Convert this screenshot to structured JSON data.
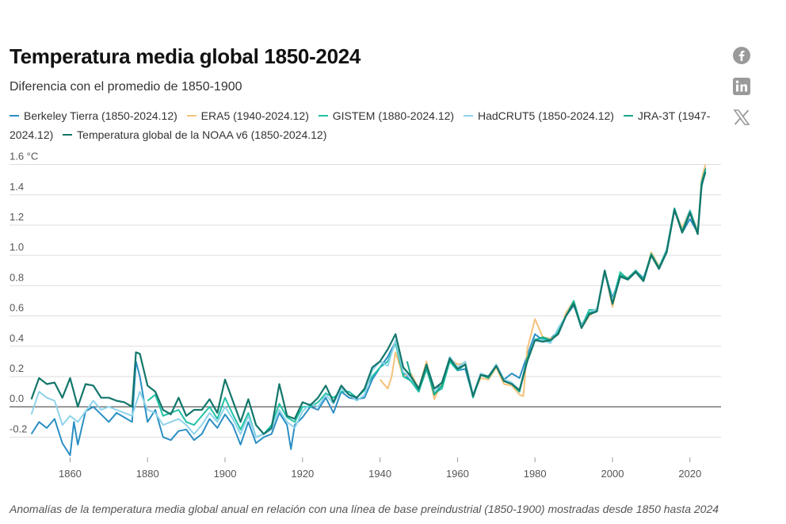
{
  "header": {
    "title": "Temperatura media global 1850-2024",
    "subtitle": "Diferencia con el promedio de 1850-1900"
  },
  "legend": [
    {
      "label": "Berkeley Tierra (1850-2024.12)",
      "color": "#2b8fc4"
    },
    {
      "label": "ERA5 (1940-2024.12)",
      "color": "#f5c27a"
    },
    {
      "label": "GISTEM (1880-2024.12)",
      "color": "#22c2a6"
    },
    {
      "label": "HadCRUT5 (1850-2024.12)",
      "color": "#8fd3ea"
    },
    {
      "label": "JRA-3T (1947-2024.12)",
      "color": "#17a88a"
    },
    {
      "label": "Temperatura global de la NOAA v6 (1850-2024.12)",
      "color": "#13766b"
    }
  ],
  "social": [
    {
      "name": "facebook-icon"
    },
    {
      "name": "linkedin-icon"
    },
    {
      "name": "x-icon"
    }
  ],
  "caption": "Anomalías de la temperatura media global anual en relación con una línea de base preindustrial (1850-1900) mostradas desde 1850 hasta 2024",
  "chart_data": {
    "type": "line",
    "title": "Temperatura media global 1850-2024",
    "subtitle": "Diferencia con el promedio de 1850-1900",
    "ylabel_unit": "°C",
    "xlim": [
      1846,
      2027
    ],
    "ylim": [
      -0.35,
      1.65
    ],
    "yticks": [
      -0.2,
      0.0,
      0.2,
      0.4,
      0.6,
      0.8,
      1.0,
      1.2,
      1.4,
      1.6
    ],
    "ytick_labels": [
      "-0.2",
      "0.0",
      "0.2",
      "0.4",
      "0.6",
      "0.8",
      "1.0",
      "1.2",
      "1.4",
      "1.6 °C"
    ],
    "xticks": [
      1860,
      1880,
      1900,
      1920,
      1940,
      1960,
      1980,
      2000,
      2020
    ],
    "xtick_labels": [
      "1860",
      "1880",
      "1900",
      "1920",
      "1940",
      "1960",
      "1980",
      "2000",
      "2020"
    ],
    "grid": "horizontal",
    "legend_position": "top",
    "series": [
      {
        "name": "Berkeley Tierra (1850-2024.12)",
        "color": "#2b8fc4",
        "x": [
          1850,
          1852,
          1854,
          1856,
          1858,
          1860,
          1861,
          1862,
          1864,
          1866,
          1868,
          1870,
          1872,
          1874,
          1876,
          1877,
          1878,
          1880,
          1882,
          1884,
          1886,
          1888,
          1890,
          1892,
          1894,
          1896,
          1898,
          1900,
          1902,
          1904,
          1906,
          1908,
          1910,
          1912,
          1914,
          1916,
          1917,
          1918,
          1920,
          1922,
          1924,
          1926,
          1928,
          1930,
          1932,
          1934,
          1936,
          1938,
          1940,
          1942,
          1944,
          1946,
          1948,
          1950,
          1952,
          1954,
          1956,
          1958,
          1960,
          1962,
          1964,
          1966,
          1968,
          1970,
          1972,
          1974,
          1976,
          1978,
          1980,
          1982,
          1984,
          1986,
          1988,
          1990,
          1992,
          1994,
          1996,
          1998,
          2000,
          2002,
          2004,
          2006,
          2008,
          2010,
          2012,
          2014,
          2016,
          2018,
          2020,
          2022,
          2023,
          2024
        ],
        "y": [
          -0.18,
          -0.1,
          -0.14,
          -0.08,
          -0.24,
          -0.32,
          -0.1,
          -0.25,
          -0.03,
          0.0,
          -0.05,
          -0.1,
          -0.04,
          -0.07,
          -0.1,
          0.3,
          0.2,
          -0.1,
          -0.02,
          -0.2,
          -0.22,
          -0.16,
          -0.15,
          -0.22,
          -0.18,
          -0.08,
          -0.14,
          -0.05,
          -0.12,
          -0.25,
          -0.1,
          -0.24,
          -0.2,
          -0.18,
          -0.04,
          -0.12,
          -0.28,
          -0.12,
          -0.07,
          0.0,
          -0.02,
          0.06,
          -0.04,
          0.1,
          0.06,
          0.05,
          0.06,
          0.18,
          0.26,
          0.33,
          0.43,
          0.22,
          0.17,
          0.1,
          0.25,
          0.09,
          0.16,
          0.3,
          0.24,
          0.25,
          0.07,
          0.22,
          0.2,
          0.28,
          0.18,
          0.22,
          0.19,
          0.34,
          0.48,
          0.44,
          0.45,
          0.5,
          0.6,
          0.67,
          0.54,
          0.62,
          0.64,
          0.89,
          0.72,
          0.86,
          0.84,
          0.9,
          0.85,
          1.0,
          0.92,
          1.04,
          1.31,
          1.15,
          1.24,
          1.15,
          1.45,
          1.58
        ]
      },
      {
        "name": "ERA5 (1940-2024.12)",
        "color": "#f5c27a",
        "x": [
          1940,
          1942,
          1943,
          1944,
          1946,
          1948,
          1950,
          1952,
          1954,
          1956,
          1958,
          1960,
          1962,
          1964,
          1966,
          1968,
          1970,
          1972,
          1974,
          1976,
          1977,
          1978,
          1980,
          1982,
          1984,
          1986,
          1988,
          1990,
          1992,
          1994,
          1996,
          1998,
          2000,
          2002,
          2004,
          2006,
          2008,
          2010,
          2012,
          2014,
          2016,
          2018,
          2020,
          2022,
          2023,
          2024
        ],
        "y": [
          0.18,
          0.12,
          0.2,
          0.36,
          0.2,
          0.22,
          0.12,
          0.3,
          0.05,
          0.16,
          0.32,
          0.28,
          0.29,
          0.08,
          0.19,
          0.18,
          0.26,
          0.15,
          0.14,
          0.08,
          0.07,
          0.38,
          0.58,
          0.46,
          0.45,
          0.48,
          0.62,
          0.7,
          0.52,
          0.6,
          0.64,
          0.9,
          0.66,
          0.88,
          0.85,
          0.89,
          0.83,
          1.02,
          0.93,
          1.02,
          1.3,
          1.18,
          1.3,
          1.16,
          1.5,
          1.6
        ]
      },
      {
        "name": "GISTEM (1880-2024.12)",
        "color": "#22c2a6",
        "x": [
          1880,
          1882,
          1884,
          1886,
          1888,
          1890,
          1892,
          1894,
          1896,
          1898,
          1900,
          1902,
          1904,
          1906,
          1908,
          1910,
          1912,
          1914,
          1916,
          1918,
          1920,
          1922,
          1924,
          1926,
          1928,
          1930,
          1932,
          1934,
          1936,
          1938,
          1940,
          1942,
          1944,
          1946,
          1948,
          1950,
          1952,
          1954,
          1956,
          1958,
          1960,
          1962,
          1964,
          1966,
          1968,
          1970,
          1972,
          1974,
          1976,
          1978,
          1980,
          1982,
          1984,
          1986,
          1988,
          1990,
          1992,
          1994,
          1996,
          1998,
          2000,
          2002,
          2004,
          2006,
          2008,
          2010,
          2012,
          2014,
          2016,
          2018,
          2020,
          2022,
          2023,
          2024
        ],
        "y": [
          0.04,
          0.08,
          -0.06,
          -0.04,
          -0.02,
          -0.1,
          -0.12,
          -0.06,
          0.0,
          -0.08,
          0.06,
          -0.05,
          -0.15,
          -0.04,
          -0.2,
          -0.18,
          -0.12,
          0.02,
          -0.07,
          -0.1,
          0.0,
          0.0,
          0.03,
          0.09,
          0.06,
          0.1,
          0.1,
          0.06,
          0.11,
          0.2,
          0.26,
          0.3,
          0.42,
          0.2,
          0.17,
          0.1,
          0.25,
          0.09,
          0.12,
          0.3,
          0.24,
          0.28,
          0.06,
          0.21,
          0.2,
          0.27,
          0.18,
          0.16,
          0.1,
          0.3,
          0.44,
          0.45,
          0.43,
          0.5,
          0.6,
          0.7,
          0.53,
          0.64,
          0.64,
          0.9,
          0.7,
          0.89,
          0.84,
          0.9,
          0.83,
          1.0,
          0.92,
          1.02,
          1.3,
          1.16,
          1.3,
          1.15,
          1.47,
          1.56
        ]
      },
      {
        "name": "HadCRUT5 (1850-2024.12)",
        "color": "#8fd3ea",
        "x": [
          1850,
          1852,
          1854,
          1856,
          1858,
          1860,
          1862,
          1864,
          1866,
          1868,
          1870,
          1872,
          1874,
          1876,
          1878,
          1880,
          1882,
          1884,
          1886,
          1888,
          1890,
          1892,
          1894,
          1896,
          1898,
          1900,
          1902,
          1904,
          1906,
          1908,
          1910,
          1912,
          1914,
          1916,
          1918,
          1920,
          1922,
          1924,
          1926,
          1928,
          1930,
          1932,
          1934,
          1936,
          1938,
          1940,
          1942,
          1944,
          1946,
          1948,
          1950,
          1952,
          1954,
          1956,
          1958,
          1960,
          1962,
          1964,
          1966,
          1968,
          1970,
          1972,
          1974,
          1976,
          1978,
          1980,
          1982,
          1984,
          1986,
          1988,
          1990,
          1992,
          1994,
          1996,
          1998,
          2000,
          2002,
          2004,
          2006,
          2008,
          2010,
          2012,
          2014,
          2016,
          2018,
          2020,
          2022,
          2023,
          2024
        ],
        "y": [
          -0.05,
          0.1,
          0.06,
          0.04,
          -0.12,
          -0.06,
          -0.1,
          -0.03,
          0.04,
          -0.02,
          0.0,
          -0.02,
          -0.04,
          -0.06,
          0.1,
          -0.02,
          -0.04,
          -0.12,
          -0.1,
          -0.08,
          -0.12,
          -0.18,
          -0.12,
          -0.04,
          -0.1,
          0.0,
          -0.08,
          -0.18,
          -0.06,
          -0.2,
          -0.18,
          -0.15,
          -0.02,
          -0.1,
          -0.14,
          -0.03,
          0.02,
          0.0,
          0.08,
          0.02,
          0.12,
          0.08,
          0.04,
          0.08,
          0.24,
          0.3,
          0.27,
          0.44,
          0.23,
          0.19,
          0.12,
          0.27,
          0.1,
          0.14,
          0.33,
          0.26,
          0.3,
          0.08,
          0.22,
          0.2,
          0.28,
          0.18,
          0.16,
          0.11,
          0.32,
          0.45,
          0.44,
          0.42,
          0.52,
          0.6,
          0.68,
          0.53,
          0.62,
          0.65,
          0.88,
          0.7,
          0.86,
          0.84,
          0.9,
          0.84,
          1.0,
          0.92,
          1.04,
          1.3,
          1.16,
          1.3,
          1.15,
          1.48,
          1.56
        ]
      },
      {
        "name": "JRA-3T (1947-2024.12)",
        "color": "#17a88a",
        "x": [
          1947,
          1948,
          1950,
          1952,
          1954,
          1956,
          1958,
          1960,
          1962,
          1964,
          1966,
          1968,
          1970,
          1972,
          1974,
          1976,
          1978,
          1980,
          1982,
          1984,
          1986,
          1988,
          1990,
          1992,
          1994,
          1996,
          1998,
          2000,
          2002,
          2004,
          2006,
          2008,
          2010,
          2012,
          2014,
          2016,
          2018,
          2020,
          2022,
          2023,
          2024
        ],
        "y": [
          0.3,
          0.2,
          0.11,
          0.26,
          0.08,
          0.14,
          0.31,
          0.25,
          0.28,
          0.07,
          0.21,
          0.19,
          0.27,
          0.17,
          0.15,
          0.1,
          0.32,
          0.44,
          0.46,
          0.44,
          0.49,
          0.6,
          0.69,
          0.52,
          0.62,
          0.63,
          0.9,
          0.68,
          0.87,
          0.85,
          0.9,
          0.84,
          1.01,
          0.92,
          1.03,
          1.31,
          1.16,
          1.29,
          1.15,
          1.48,
          1.57
        ]
      },
      {
        "name": "Temperatura global de la NOAA v6 (1850-2024.12)",
        "color": "#13766b",
        "x": [
          1850,
          1852,
          1854,
          1856,
          1858,
          1860,
          1862,
          1864,
          1866,
          1868,
          1870,
          1872,
          1874,
          1876,
          1877,
          1878,
          1880,
          1882,
          1884,
          1886,
          1888,
          1890,
          1892,
          1894,
          1896,
          1898,
          1900,
          1902,
          1904,
          1906,
          1908,
          1910,
          1912,
          1914,
          1916,
          1918,
          1920,
          1922,
          1924,
          1926,
          1928,
          1930,
          1932,
          1934,
          1936,
          1938,
          1940,
          1942,
          1944,
          1946,
          1948,
          1950,
          1952,
          1954,
          1956,
          1958,
          1960,
          1962,
          1964,
          1966,
          1968,
          1970,
          1972,
          1974,
          1976,
          1978,
          1980,
          1982,
          1984,
          1986,
          1988,
          1990,
          1992,
          1994,
          1996,
          1998,
          2000,
          2002,
          2004,
          2006,
          2008,
          2010,
          2012,
          2014,
          2016,
          2018,
          2020,
          2022,
          2023,
          2024
        ],
        "y": [
          0.05,
          0.19,
          0.15,
          0.16,
          0.06,
          0.19,
          0.0,
          0.15,
          0.14,
          0.06,
          0.06,
          0.04,
          0.03,
          0.0,
          0.36,
          0.35,
          0.14,
          0.1,
          -0.02,
          -0.05,
          0.06,
          -0.06,
          -0.02,
          -0.02,
          0.05,
          -0.04,
          0.18,
          0.04,
          -0.1,
          0.05,
          -0.12,
          -0.18,
          -0.14,
          0.15,
          -0.06,
          -0.08,
          0.03,
          0.01,
          0.06,
          0.14,
          0.03,
          0.14,
          0.08,
          0.06,
          0.12,
          0.26,
          0.3,
          0.38,
          0.48,
          0.26,
          0.2,
          0.12,
          0.28,
          0.12,
          0.16,
          0.32,
          0.25,
          0.28,
          0.07,
          0.21,
          0.2,
          0.27,
          0.17,
          0.15,
          0.11,
          0.3,
          0.44,
          0.43,
          0.44,
          0.48,
          0.6,
          0.68,
          0.52,
          0.61,
          0.63,
          0.9,
          0.68,
          0.86,
          0.84,
          0.89,
          0.83,
          1.0,
          0.91,
          1.02,
          1.3,
          1.15,
          1.28,
          1.14,
          1.46,
          1.55
        ]
      }
    ]
  }
}
